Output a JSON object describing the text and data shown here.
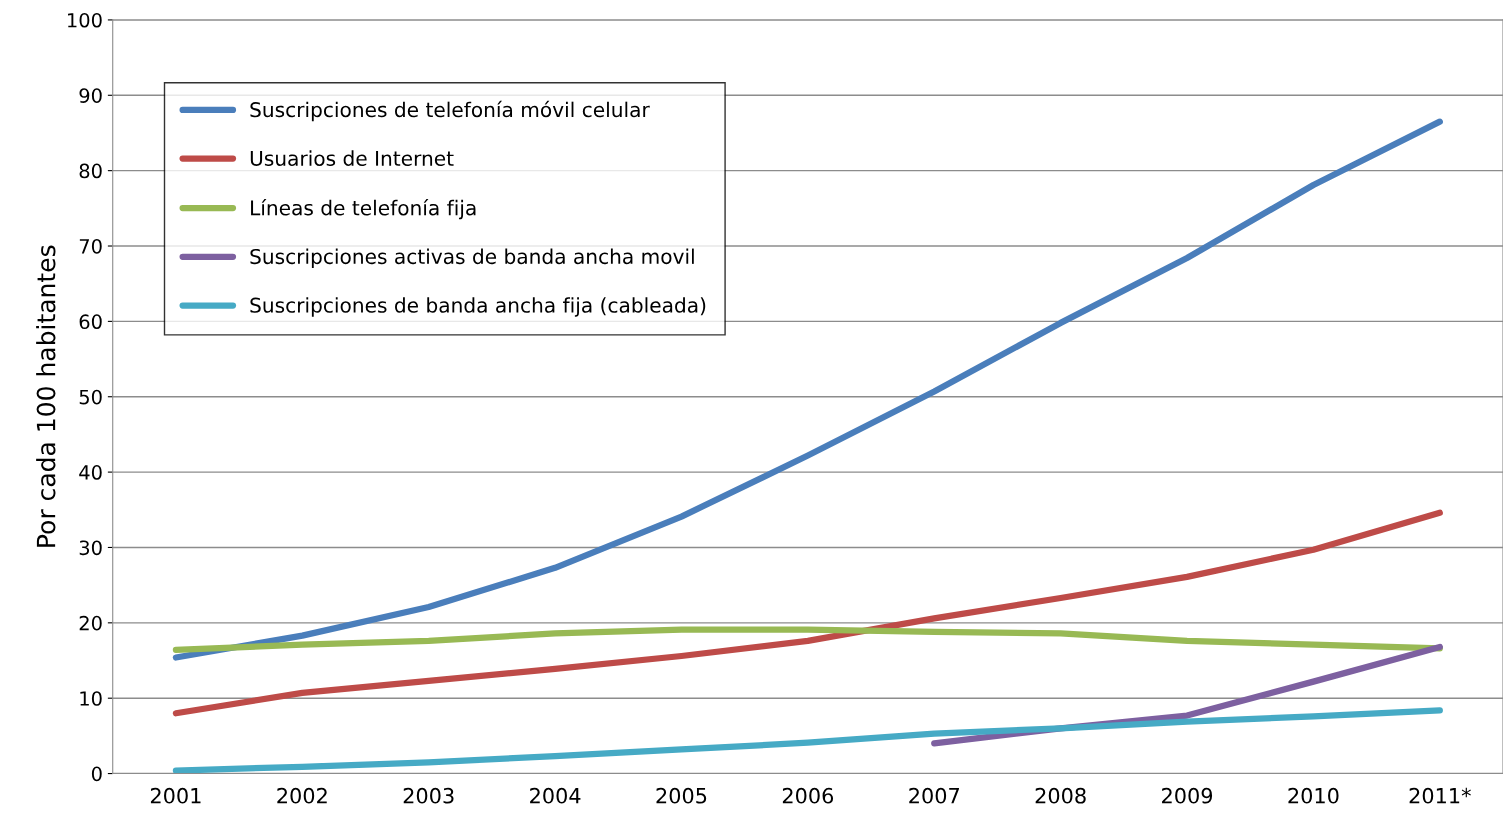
{
  "chart_data": {
    "type": "line",
    "ylabel": "Por cada 100 habitantes",
    "categories": [
      "2001",
      "2002",
      "2003",
      "2004",
      "2005",
      "2006",
      "2007",
      "2008",
      "2009",
      "2010",
      "2011*"
    ],
    "ylim": [
      0,
      100
    ],
    "yticks": [
      0,
      10,
      20,
      30,
      40,
      50,
      60,
      70,
      80,
      90,
      100
    ],
    "grid": "y",
    "legend": "top left",
    "marker": "none",
    "line_style": "solid",
    "series": [
      {
        "name": "Suscripciones de telefonía móvil celular",
        "color": "#4a7ebb",
        "values": [
          15.4,
          18.3,
          22.1,
          27.3,
          34.1,
          42.2,
          50.7,
          59.8,
          68.4,
          78.1,
          86.5
        ]
      },
      {
        "name": "Usuarios de Internet",
        "color": "#be4b48",
        "values": [
          8.0,
          10.7,
          12.3,
          13.9,
          15.6,
          17.6,
          20.6,
          23.3,
          26.1,
          29.7,
          34.6
        ]
      },
      {
        "name": "Líneas de telefonía fija",
        "color": "#98b954",
        "values": [
          16.4,
          17.1,
          17.6,
          18.6,
          19.1,
          19.1,
          18.8,
          18.6,
          17.6,
          17.1,
          16.6
        ]
      },
      {
        "name": "Suscripciones activas de banda ancha movil",
        "color": "#7d60a0",
        "values": [
          null,
          null,
          null,
          null,
          null,
          null,
          4.0,
          6.0,
          7.7,
          12.2,
          16.8
        ]
      },
      {
        "name": "Suscripciones de banda ancha fija (cableada)",
        "color": "#46aac5",
        "values": [
          0.4,
          0.9,
          1.5,
          2.3,
          3.2,
          4.1,
          5.3,
          6.0,
          6.9,
          7.6,
          8.4
        ]
      }
    ]
  }
}
